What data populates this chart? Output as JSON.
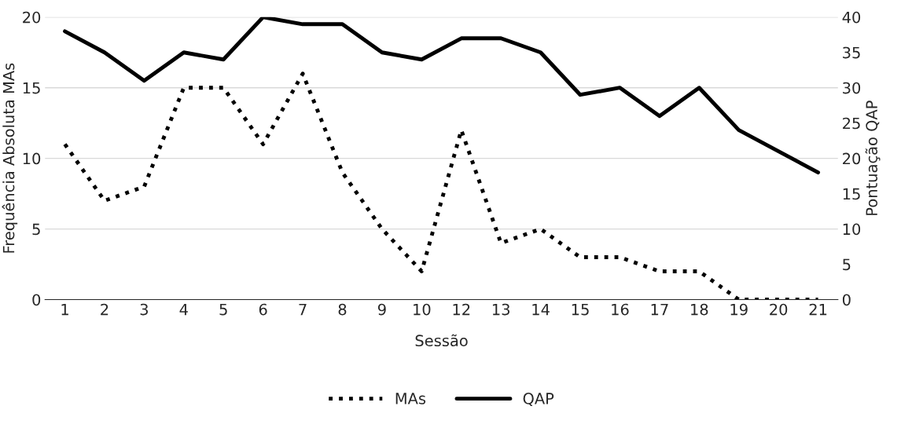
{
  "chart_data": {
    "type": "line",
    "xlabel": "Sessão",
    "ylabel": "Frequência Absoluta MAs",
    "y2label": "Pontuação QAP",
    "categories": [
      "1",
      "2",
      "3",
      "4",
      "5",
      "6",
      "7",
      "8",
      "9",
      "10",
      "12",
      "13",
      "14",
      "15",
      "16",
      "17",
      "18",
      "19",
      "20",
      "21"
    ],
    "series": [
      {
        "name": "MAs",
        "color": "#000000",
        "line_style": "dotted",
        "values": [
          11,
          7,
          8,
          15,
          15,
          11,
          16,
          9,
          5,
          2,
          12,
          4,
          5,
          3,
          3,
          2,
          2,
          0,
          0,
          0
        ]
      },
      {
        "name": "QAP",
        "color": "#000000",
        "line_style": "solid",
        "axis": "y2",
        "values": [
          38,
          35,
          31,
          35,
          34,
          40,
          39,
          39,
          35,
          34,
          37,
          37,
          35,
          29,
          30,
          26,
          30,
          24,
          21,
          18
        ]
      }
    ],
    "ylim": [
      0,
      20
    ],
    "yticks": [
      0,
      5,
      10,
      15,
      20
    ],
    "y2lim": [
      0,
      40
    ],
    "y2ticks": [
      0,
      5,
      10,
      15,
      20,
      25,
      30,
      35,
      40
    ],
    "grid": "y",
    "legend": "bottom",
    "marker": "none"
  }
}
